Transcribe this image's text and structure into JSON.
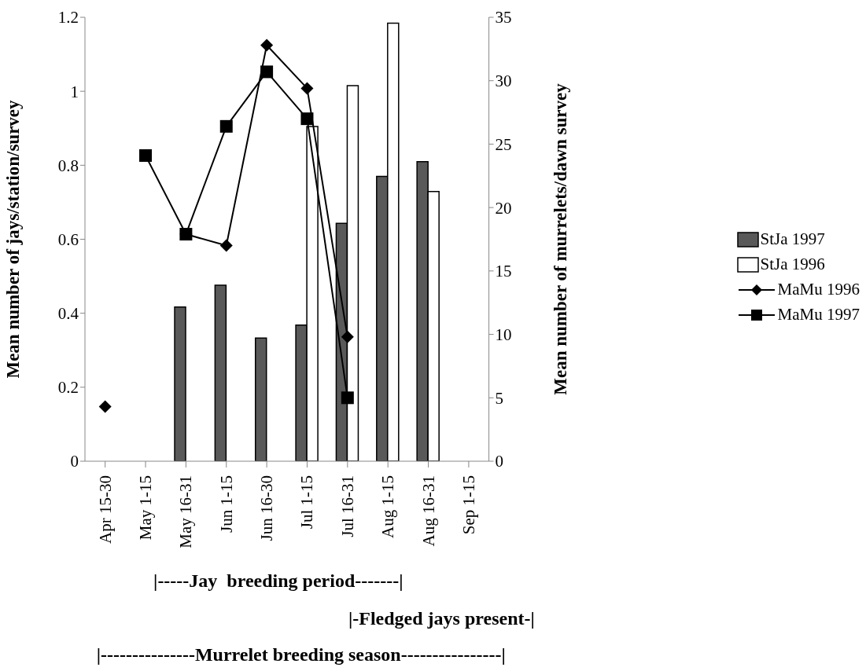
{
  "chart_data": {
    "type": "bar",
    "categories": [
      "Apr 15-30",
      "May 1-15",
      "May 16-31",
      "Jun 1-15",
      "Jun 16-30",
      "Jul 1-15",
      "Jul 16-31",
      "Aug 1-15",
      "Aug 16-31",
      "Sep 1-15"
    ],
    "ylabel": "Mean number of jays/station/survey",
    "y2label": "Mean number of murrelets/dawn survey",
    "ylim": [
      0,
      1.2
    ],
    "yticks": [
      0,
      0.2,
      0.4,
      0.6,
      0.8,
      1,
      1.2
    ],
    "y2lim": [
      0,
      35
    ],
    "y2ticks": [
      0,
      5,
      10,
      15,
      20,
      25,
      30,
      35
    ],
    "legend": "right",
    "series": [
      {
        "name": "StJa 1997",
        "color": "#595959",
        "values": [
          null,
          null,
          0.417,
          0.476,
          0.333,
          0.368,
          0.643,
          0.77,
          0.81,
          null
        ]
      },
      {
        "name": "StJa 1996",
        "color": "#ffffff",
        "values": [
          null,
          null,
          null,
          null,
          null,
          0.905,
          1.015,
          1.184,
          0.729,
          null
        ]
      },
      {
        "name": "MaMu 1996",
        "type": "line",
        "axis": "y2",
        "color": "#000000",
        "marker": "diamond",
        "values": [
          4.3,
          null,
          17.9,
          17.0,
          32.8,
          29.4,
          9.8,
          null,
          null,
          null
        ]
      },
      {
        "name": "MaMu 1997",
        "type": "line",
        "axis": "y2",
        "color": "#000000",
        "marker": "square",
        "values": [
          null,
          24.1,
          17.9,
          26.4,
          30.7,
          27.0,
          5.0,
          null,
          null,
          null
        ]
      }
    ],
    "annotations": [
      "|-----Jay  breeding period-------|",
      "|-Fledged jays present-|",
      "|---------------Murrelet breeding season----------------|"
    ]
  }
}
